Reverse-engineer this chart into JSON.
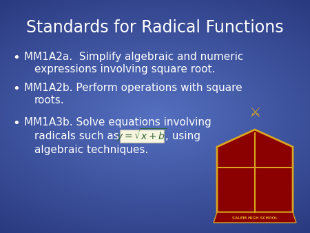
{
  "title": "Standards for Radical Functions",
  "bg_color": "#3a52a0",
  "bg_center": "#5570c0",
  "bg_edge": "#2a3a80",
  "title_color": "#ffffff",
  "text_color": "#ffffff",
  "title_fontsize": 17,
  "bullet_fontsize": 11,
  "bullet1_line1": "MM1A2a.  Simplify algebraic and numeric",
  "bullet1_line2": "expressions involving square root.",
  "bullet2_line1": "MM1A2b. Perform operations with square",
  "bullet2_line2": "roots.",
  "bullet3_line1": "MM1A3b. Solve equations involving",
  "bullet3_line2": "radicals such as",
  "bullet3_line2b": ", using",
  "bullet3_line3": "algebraic techniques.",
  "formula_bg": "#f5f5e0",
  "formula_color": "#336633",
  "crest_bg": "#8B4513",
  "crest_shield": "#8B0000",
  "crest_gold": "#DAA520"
}
